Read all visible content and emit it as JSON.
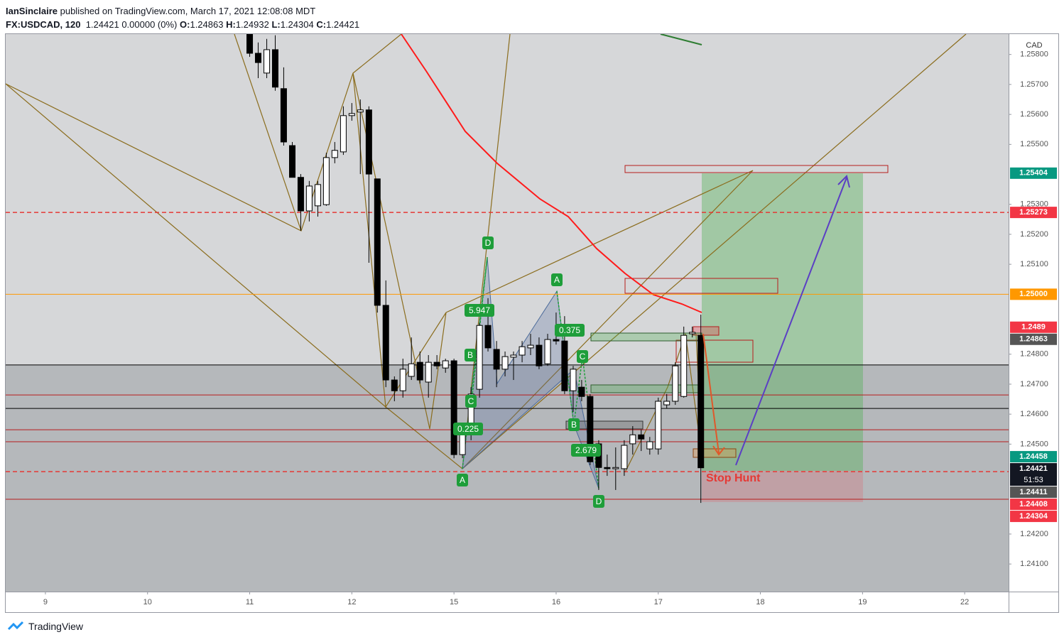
{
  "header": {
    "author": "IanSinclaire",
    "published": "published on TradingView.com, March 17, 2021 12:08:08 MDT",
    "symbol": "FX:USDCAD, 120",
    "last": "1.24421",
    "change": "0.00000 (0%)",
    "o_label": "O:",
    "o": "1.24863",
    "h_label": "H:",
    "h": "1.24932",
    "l_label": "L:",
    "l": "1.24304",
    "c_label": "C:",
    "c": "1.24421"
  },
  "footer": {
    "brand": "TradingView"
  },
  "chart_data": {
    "type": "candlestick",
    "currency": "CAD",
    "up_color": "#ffffff",
    "down_color": "#000000",
    "x": [
      2,
      2.083,
      2.167,
      2.25,
      2.333,
      2.417,
      2.5,
      2.583,
      2.667,
      2.75,
      2.833,
      2.917,
      3,
      3.083,
      3.167,
      3.25,
      3.333,
      3.417,
      3.5,
      3.583,
      3.667,
      3.75,
      3.833,
      3.917,
      4,
      4.083,
      4.167,
      4.25,
      4.333,
      4.417,
      4.5,
      4.583,
      4.667,
      4.75,
      4.833,
      4.917,
      5,
      5.083,
      5.167,
      5.25,
      5.333,
      5.417,
      5.5,
      5.583,
      5.667,
      5.75,
      5.833,
      5.917,
      6,
      6.083,
      6.167,
      6.25,
      6.333,
      6.417
    ],
    "open": [
      1.25868,
      1.25804,
      1.25738,
      1.25816,
      1.25686,
      1.25496,
      1.2539,
      1.25278,
      1.25295,
      1.25299,
      1.25456,
      1.25475,
      1.25596,
      1.25608,
      1.25615,
      1.25385,
      1.24963,
      1.24714,
      1.24678,
      1.24726,
      1.24773,
      1.24707,
      1.24773,
      1.24754,
      1.24778,
      1.24465,
      1.24531,
      1.24683,
      1.24896,
      1.24816,
      1.2475,
      1.2479,
      1.24797,
      1.24821,
      1.2483,
      1.24768,
      1.24849,
      1.24844,
      1.24678,
      1.2469,
      1.24659,
      1.24501,
      1.24422,
      1.24418,
      1.24418,
      1.24501,
      1.24531,
      1.24484,
      1.24484,
      1.24631,
      1.24643,
      1.24659,
      1.24868,
      1.24863
    ],
    "high": [
      1.25868,
      1.2584,
      1.25852,
      1.25864,
      1.25757,
      1.25508,
      1.25401,
      1.25378,
      1.25378,
      1.25472,
      1.25508,
      1.25627,
      1.25638,
      1.2565,
      1.25627,
      1.25385,
      1.25046,
      1.24726,
      1.24785,
      1.24856,
      1.24809,
      1.24797,
      1.24797,
      1.24785,
      1.24785,
      1.2456,
      1.2469,
      1.24904,
      1.24987,
      1.24844,
      1.24809,
      1.24809,
      1.24844,
      1.24868,
      1.24856,
      1.24868,
      1.24939,
      1.24927,
      1.24761,
      1.24714,
      1.24667,
      1.24513,
      1.24465,
      1.24489,
      1.24513,
      1.2456,
      1.24548,
      1.24524,
      1.24655,
      1.24667,
      1.24773,
      1.24892,
      1.24892,
      1.24932
    ],
    "low": [
      1.25792,
      1.25721,
      1.25721,
      1.25679,
      1.25496,
      1.2539,
      1.25212,
      1.25243,
      1.25259,
      1.25295,
      1.25437,
      1.25465,
      1.25579,
      1.25401,
      1.25105,
      1.24939,
      1.2469,
      1.24643,
      1.24655,
      1.24714,
      1.24702,
      1.24655,
      1.2475,
      1.24738,
      1.24453,
      1.24453,
      1.24513,
      1.24655,
      1.24809,
      1.2469,
      1.24726,
      1.24714,
      1.24773,
      1.24797,
      1.2475,
      1.24761,
      1.24832,
      1.24667,
      1.24607,
      1.24643,
      1.2443,
      1.24347,
      1.24394,
      1.24347,
      1.24394,
      1.24465,
      1.24477,
      1.24465,
      1.24465,
      1.24619,
      1.24631,
      1.24655,
      1.24856,
      1.24304
    ],
    "close": [
      1.25804,
      1.25773,
      1.25816,
      1.25691,
      1.25508,
      1.2539,
      1.25278,
      1.25361,
      1.25366,
      1.25456,
      1.2548,
      1.25596,
      1.25603,
      1.25615,
      1.25401,
      1.24963,
      1.24714,
      1.24678,
      1.2475,
      1.24768,
      1.24714,
      1.24773,
      1.24761,
      1.24778,
      1.24465,
      1.24536,
      1.24667,
      1.24896,
      1.24821,
      1.2475,
      1.24792,
      1.24797,
      1.24825,
      1.2483,
      1.24761,
      1.24849,
      1.24844,
      1.24678,
      1.2475,
      1.24659,
      1.24441,
      1.24422,
      1.24418,
      1.24422,
      1.24496,
      1.24531,
      1.24517,
      1.24508,
      1.24643,
      1.24643,
      1.24761,
      1.24863,
      1.24873,
      1.24421
    ],
    "xlim": [
      -0.389,
      9.43
    ],
    "ylim": [
      1.24008,
      1.25868
    ],
    "xticks": [
      {
        "value": 0,
        "label": "9"
      },
      {
        "value": 1,
        "label": "10"
      },
      {
        "value": 2,
        "label": "11"
      },
      {
        "value": 3,
        "label": "12"
      },
      {
        "value": 4,
        "label": "15"
      },
      {
        "value": 5,
        "label": "16"
      },
      {
        "value": 6,
        "label": "17"
      },
      {
        "value": 7,
        "label": "18"
      },
      {
        "value": 8,
        "label": "19"
      },
      {
        "value": 9,
        "label": "22"
      }
    ],
    "yticks": [
      {
        "value": 1.241,
        "label": "1.24100"
      },
      {
        "value": 1.242,
        "label": "1.24200"
      },
      {
        "value": 1.245,
        "label": "1.24500"
      },
      {
        "value": 1.246,
        "label": "1.24600"
      },
      {
        "value": 1.247,
        "label": "1.24700"
      },
      {
        "value": 1.248,
        "label": "1.24800"
      },
      {
        "value": 1.251,
        "label": "1.25100"
      },
      {
        "value": 1.252,
        "label": "1.25200"
      },
      {
        "value": 1.253,
        "label": "1.25300"
      },
      {
        "value": 1.255,
        "label": "1.25500"
      },
      {
        "value": 1.256,
        "label": "1.25600"
      },
      {
        "value": 1.257,
        "label": "1.25700"
      },
      {
        "value": 1.258,
        "label": "1.25800"
      }
    ],
    "grid": false,
    "horizontal_lines": [
      {
        "value": 1.25273,
        "color": "#e53935",
        "dash": true
      },
      {
        "value": 1.25,
        "color": "#ff9800",
        "dash": false
      },
      {
        "value": 1.24764,
        "color": "#000000",
        "dash": false
      },
      {
        "value": 1.24664,
        "color": "#b71c1c",
        "dash": false
      },
      {
        "value": 1.24619,
        "color": "#000000",
        "dash": false
      },
      {
        "value": 1.24548,
        "color": "#b71c1c",
        "dash": false
      },
      {
        "value": 1.24508,
        "color": "#b71c1c",
        "dash": false
      },
      {
        "value": 1.24408,
        "color": "#e53935",
        "dash": true
      },
      {
        "value": 1.24316,
        "color": "#b71c1c",
        "dash": false
      }
    ],
    "price_labels": [
      {
        "value": 1.25404,
        "color": "#089981"
      },
      {
        "value": 1.25273,
        "color": "#f23645"
      },
      {
        "value": 1.25,
        "label": "1.25000",
        "color": "#ff9800"
      },
      {
        "value": 1.2489,
        "color": "#f23645"
      },
      {
        "value": 1.24863,
        "color": "#555555"
      },
      {
        "value": 1.24458,
        "color": "#089981"
      },
      {
        "value": 1.24421,
        "color": "#131722",
        "countdown": "51:53"
      },
      {
        "value": 1.24411,
        "color": "#555555"
      },
      {
        "value": 1.24408,
        "color": "#f23645"
      },
      {
        "value": 1.24304,
        "color": "#f23645"
      }
    ],
    "annotations": [
      "D",
      "5.947",
      "B",
      "C",
      "0.225",
      "A",
      "A",
      "0.375",
      "C",
      "B",
      "2.679",
      "D"
    ],
    "stop_label": "Stop Hunt"
  }
}
